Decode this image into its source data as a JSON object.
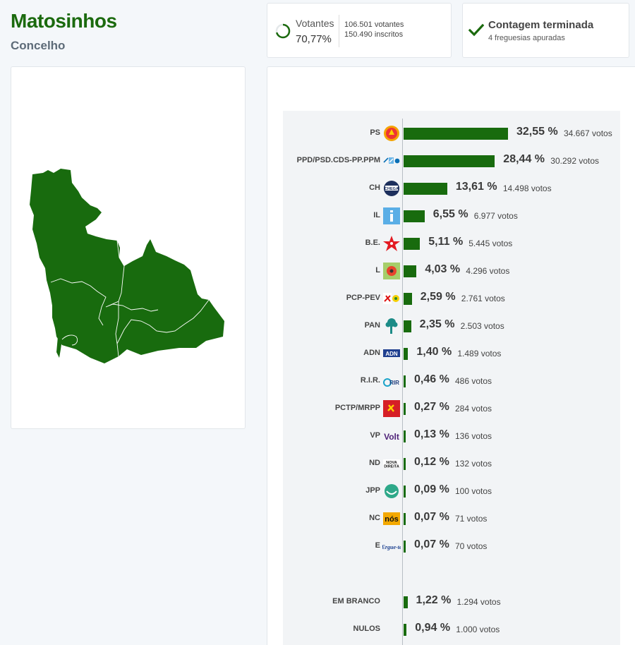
{
  "header": {
    "title": "Matosinhos",
    "subtitle": "Concelho"
  },
  "turnout": {
    "label": "Votantes",
    "percent": "70,77%",
    "fraction": 0.7077,
    "voters": "106.501 votantes",
    "registered": "150.490 inscritos"
  },
  "count_status": {
    "title": "Contagem terminada",
    "subtitle": "4 freguesias apuradas"
  },
  "map": {
    "fill_color": "#186b0e",
    "border_color": "#ffffff"
  },
  "colors": {
    "accent": "#1b6a0e",
    "bar": "#186b0e"
  },
  "results": [
    {
      "party": "PS",
      "logo": "ps-logo",
      "pct": "32,55 %",
      "value": 32.55,
      "votes": "34.667 votos"
    },
    {
      "party": "PPD/PSD.CDS-PP.PPM",
      "logo": "ad-logo",
      "pct": "28,44 %",
      "value": 28.44,
      "votes": "30.292 votos"
    },
    {
      "party": "CH",
      "logo": "chega-logo",
      "pct": "13,61 %",
      "value": 13.61,
      "votes": "14.498 votos"
    },
    {
      "party": "IL",
      "logo": "il-logo",
      "pct": "6,55 %",
      "value": 6.55,
      "votes": "6.977 votos"
    },
    {
      "party": "B.E.",
      "logo": "be-logo",
      "pct": "5,11 %",
      "value": 5.11,
      "votes": "5.445 votos"
    },
    {
      "party": "L",
      "logo": "livre-logo",
      "pct": "4,03 %",
      "value": 4.03,
      "votes": "4.296 votos"
    },
    {
      "party": "PCP-PEV",
      "logo": "cdu-logo",
      "pct": "2,59 %",
      "value": 2.59,
      "votes": "2.761 votos"
    },
    {
      "party": "PAN",
      "logo": "pan-logo",
      "pct": "2,35 %",
      "value": 2.35,
      "votes": "2.503 votos"
    },
    {
      "party": "ADN",
      "logo": "adn-logo",
      "pct": "1,40 %",
      "value": 1.4,
      "votes": "1.489 votos"
    },
    {
      "party": "R.I.R.",
      "logo": "rir-logo",
      "pct": "0,46 %",
      "value": 0.46,
      "votes": "486 votos"
    },
    {
      "party": "PCTP/MRPP",
      "logo": "pctp-logo",
      "pct": "0,27 %",
      "value": 0.27,
      "votes": "284 votos"
    },
    {
      "party": "VP",
      "logo": "volt-logo",
      "pct": "0,13 %",
      "value": 0.13,
      "votes": "136 votos"
    },
    {
      "party": "ND",
      "logo": "nd-logo",
      "pct": "0,12 %",
      "value": 0.12,
      "votes": "132 votos"
    },
    {
      "party": "JPP",
      "logo": "jpp-logo",
      "pct": "0,09 %",
      "value": 0.09,
      "votes": "100 votos"
    },
    {
      "party": "NC",
      "logo": "nos-logo",
      "pct": "0,07 %",
      "value": 0.07,
      "votes": "71 votos"
    },
    {
      "party": "E",
      "logo": "ergue-te-logo",
      "pct": "0,07 %",
      "value": 0.07,
      "votes": "70 votos"
    }
  ],
  "other_results": [
    {
      "party": "EM BRANCO",
      "pct": "1,22 %",
      "value": 1.22,
      "votes": "1.294 votos"
    },
    {
      "party": "NULOS",
      "pct": "0,94 %",
      "value": 0.94,
      "votes": "1.000 votos"
    }
  ]
}
